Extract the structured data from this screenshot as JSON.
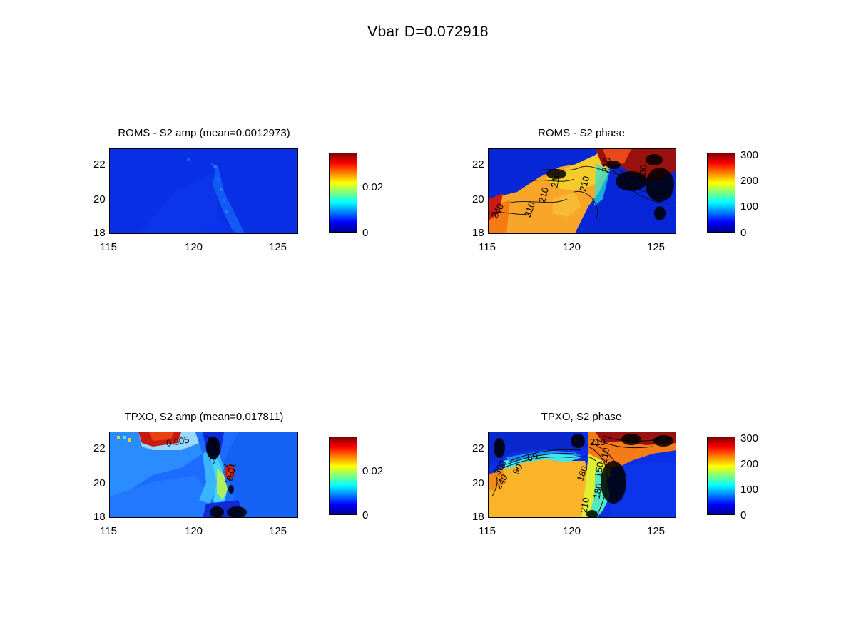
{
  "figure": {
    "title": "Vbar    D=0.072918"
  },
  "chart_data": [
    {
      "type": "heatmap",
      "id": "roms_amp",
      "title": "ROMS - S2 amp (mean=0.0012973)",
      "x_ticks": [
        "115",
        "120",
        "125"
      ],
      "y_ticks": [
        "18",
        "20",
        "22"
      ],
      "xlim": [
        115,
        126
      ],
      "ylim": [
        18,
        23
      ],
      "clim": [
        0,
        0.034
      ],
      "colorbar_ticks": [
        "0",
        "0.02"
      ],
      "colorbar_tick_values": [
        0,
        0.02
      ],
      "colormap": "jet",
      "dominant_color": "#0a2ee0",
      "contour_labels": []
    },
    {
      "type": "heatmap",
      "id": "roms_phase",
      "title": "ROMS - S2 phase",
      "x_ticks": [
        "115",
        "120",
        "125"
      ],
      "y_ticks": [
        "18",
        "20",
        "22"
      ],
      "xlim": [
        115,
        126
      ],
      "ylim": [
        18,
        23
      ],
      "clim": [
        0,
        300
      ],
      "colorbar_ticks": [
        "0",
        "100",
        "200",
        "300"
      ],
      "colorbar_tick_values": [
        0,
        100,
        200,
        300
      ],
      "colormap": "jet",
      "contour_labels": [
        "240",
        "210",
        "210",
        "210",
        "210",
        "210",
        "330"
      ]
    },
    {
      "type": "heatmap",
      "id": "tpxo_amp",
      "title": "TPXO, S2 amp (mean=0.017811)",
      "x_ticks": [
        "115",
        "120",
        "125"
      ],
      "y_ticks": [
        "18",
        "20",
        "22"
      ],
      "xlim": [
        115,
        126
      ],
      "ylim": [
        18,
        23
      ],
      "clim": [
        0,
        0.034
      ],
      "colorbar_ticks": [
        "0",
        "0.02"
      ],
      "colorbar_tick_values": [
        0,
        0.02
      ],
      "colormap": "jet",
      "contour_labels": [
        "0.005",
        "0.01"
      ]
    },
    {
      "type": "heatmap",
      "id": "tpxo_phase",
      "title": "TPXO, S2 phase",
      "x_ticks": [
        "115",
        "120",
        "125"
      ],
      "y_ticks": [
        "18",
        "20",
        "22"
      ],
      "xlim": [
        115,
        126
      ],
      "ylim": [
        18,
        23
      ],
      "clim": [
        0,
        300
      ],
      "colorbar_ticks": [
        "0",
        "100",
        "200",
        "300"
      ],
      "colorbar_tick_values": [
        0,
        100,
        200,
        300
      ],
      "colormap": "jet",
      "contour_labels": [
        "300",
        "240",
        "60",
        "90",
        "180",
        "210",
        "150",
        "210",
        "180",
        "210"
      ]
    }
  ]
}
